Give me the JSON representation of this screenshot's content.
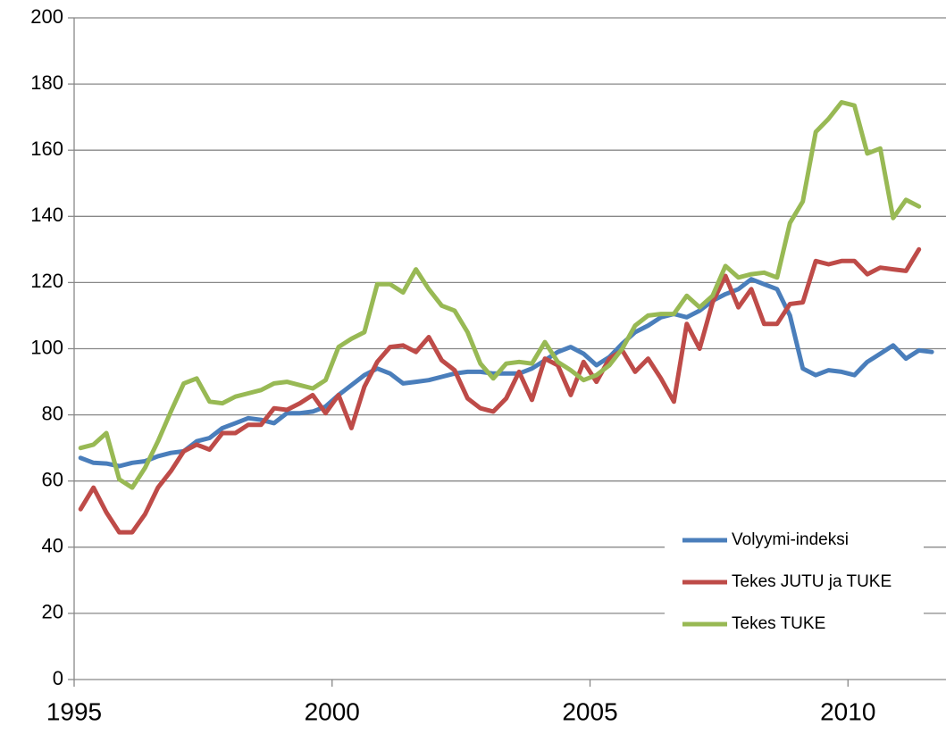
{
  "chart_data": {
    "type": "line",
    "x": [
      1995.125,
      1995.375,
      1995.625,
      1995.875,
      1996.125,
      1996.375,
      1996.625,
      1996.875,
      1997.125,
      1997.375,
      1997.625,
      1997.875,
      1998.125,
      1998.375,
      1998.625,
      1998.875,
      1999.125,
      1999.375,
      1999.625,
      1999.875,
      2000.125,
      2000.375,
      2000.625,
      2000.875,
      2001.125,
      2001.375,
      2001.625,
      2001.875,
      2002.125,
      2002.375,
      2002.625,
      2002.875,
      2003.125,
      2003.375,
      2003.625,
      2003.875,
      2004.125,
      2004.375,
      2004.625,
      2004.875,
      2005.125,
      2005.375,
      2005.625,
      2005.875,
      2006.125,
      2006.375,
      2006.625,
      2006.875,
      2007.125,
      2007.375,
      2007.625,
      2007.875,
      2008.125,
      2008.375,
      2008.625,
      2008.875,
      2009.125,
      2009.375,
      2009.625,
      2009.875,
      2010.125,
      2010.375,
      2010.625,
      2010.875,
      2011.125,
      2011.375,
      2011.625
    ],
    "series": [
      {
        "name": "Volyymi-indeksi",
        "color": "#4a7ebb",
        "values": [
          67,
          65.5,
          65.3,
          64.5,
          65.5,
          66,
          67.5,
          68.5,
          69,
          72,
          73,
          76,
          77.5,
          79,
          78.5,
          77.5,
          80.5,
          80.5,
          81,
          82.5,
          86,
          89,
          92,
          94,
          92.5,
          89.5,
          90,
          90.5,
          91.5,
          92.5,
          93,
          93,
          92.5,
          92.5,
          92.5,
          94,
          96.5,
          99,
          100.5,
          98.5,
          95,
          97.5,
          101.5,
          105,
          107,
          109.5,
          110.5,
          109.5,
          111.5,
          114.5,
          116.5,
          118,
          121,
          119.5,
          118,
          110,
          94,
          92,
          93.5,
          93,
          92,
          96,
          98.5,
          101,
          97,
          99.5,
          99
        ]
      },
      {
        "name": "Tekes JUTU ja TUKE",
        "color": "#be4b48",
        "values": [
          51.5,
          58,
          50.5,
          44.5,
          44.5,
          50,
          58,
          63,
          69,
          71,
          69.5,
          74.5,
          74.5,
          77,
          77,
          82,
          81.5,
          83.5,
          86,
          80.5,
          86,
          76,
          88.5,
          96,
          100.5,
          101,
          99,
          103.5,
          96.5,
          93.5,
          85,
          82,
          81,
          85,
          93,
          84.5,
          97,
          95,
          86,
          96,
          90,
          97,
          99.5,
          93,
          97,
          91,
          84,
          107.5,
          100,
          114,
          122,
          112.5,
          118,
          107.5,
          107.5,
          113.5,
          114,
          126.5,
          125.5,
          126.5,
          126.5,
          122.5,
          124.5,
          124,
          123.5,
          130,
          null
        ]
      },
      {
        "name": "Tekes TUKE",
        "color": "#98b954",
        "values": [
          70,
          71,
          74.5,
          60.5,
          58,
          64,
          72,
          81,
          89.5,
          91,
          84,
          83.5,
          85.5,
          86.5,
          87.5,
          89.5,
          90,
          89,
          88,
          90.5,
          100.5,
          103,
          105,
          119.5,
          119.5,
          117,
          124,
          118,
          113,
          111.5,
          105,
          95.5,
          91,
          95.5,
          96,
          95.5,
          102,
          96,
          93.5,
          90.5,
          92,
          95,
          100,
          107,
          110,
          110.5,
          110.5,
          116,
          112.5,
          116,
          125,
          121.5,
          122.5,
          123,
          121.5,
          138,
          144.5,
          165.5,
          169.5,
          174.5,
          173.5,
          159,
          160.5,
          139.5,
          145,
          143,
          null
        ]
      }
    ],
    "xlim": [
      1995,
      2011.9
    ],
    "xticks": [
      1995,
      2000,
      2005,
      2010
    ],
    "ylim": [
      0,
      200
    ],
    "yticks": [
      0,
      20,
      40,
      60,
      80,
      100,
      120,
      140,
      160,
      180,
      200
    ],
    "grid": true,
    "legend": "lower right"
  }
}
